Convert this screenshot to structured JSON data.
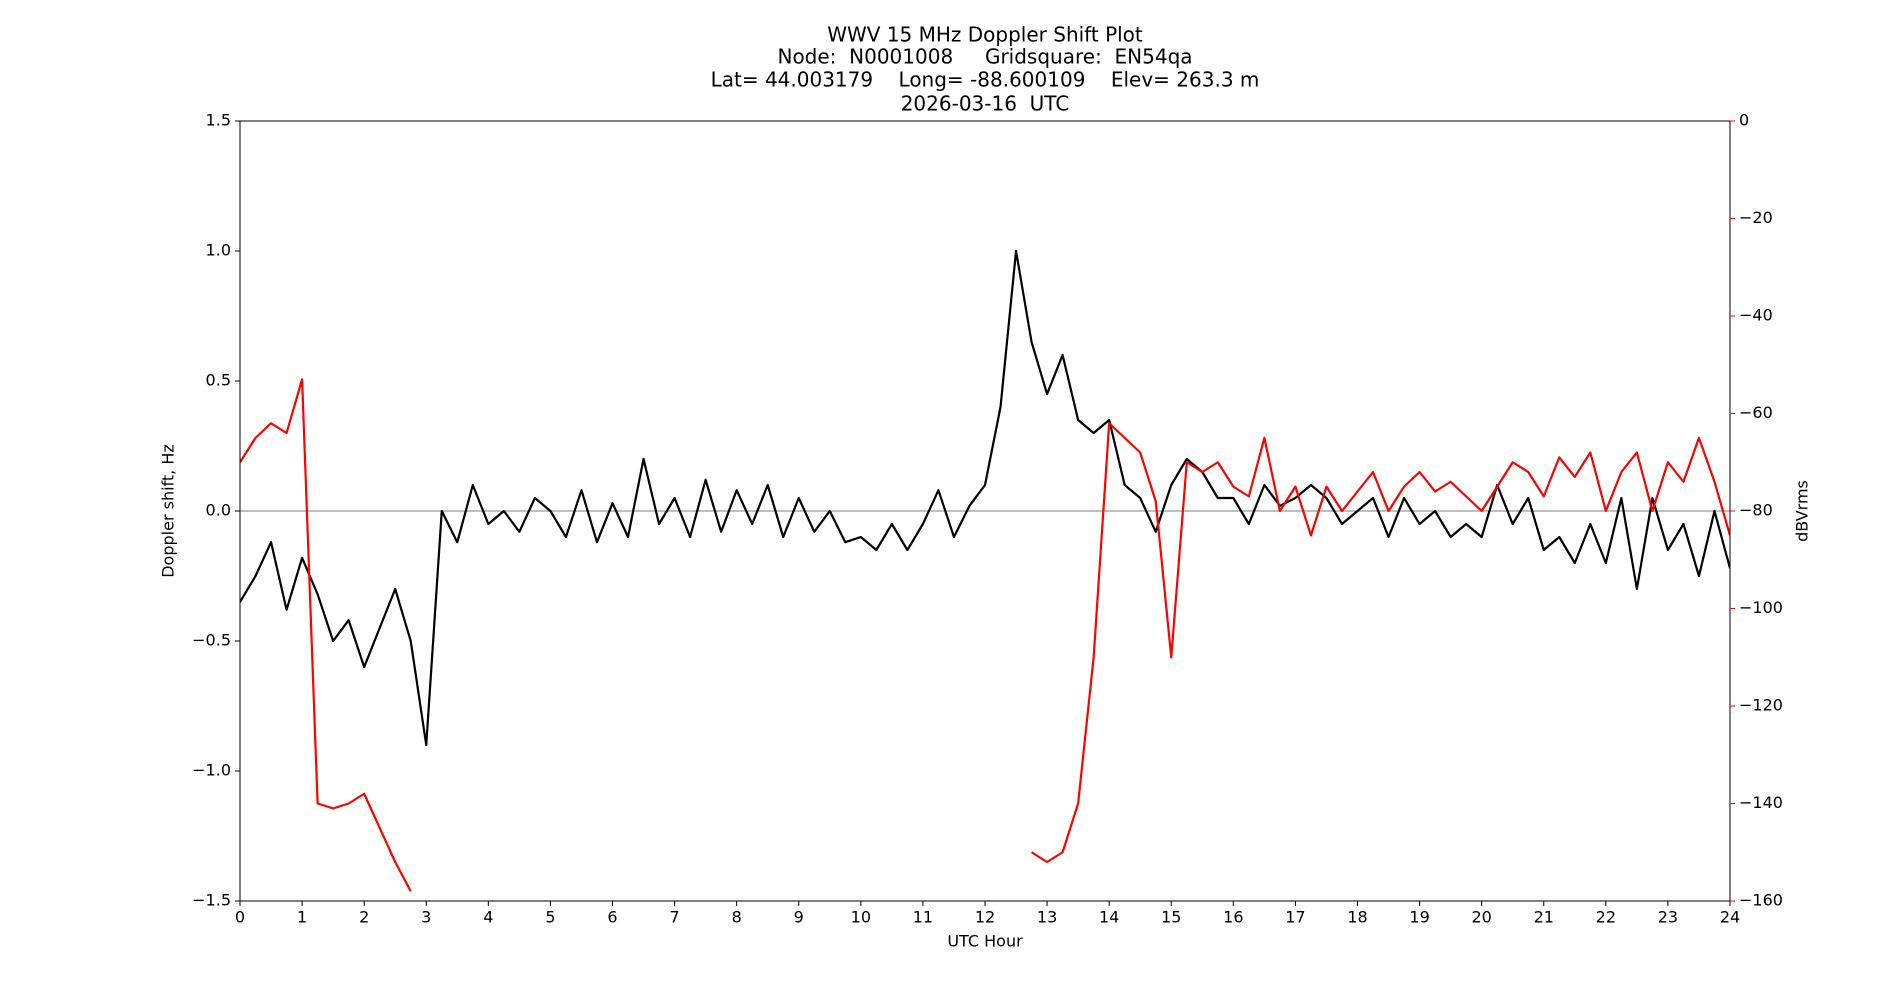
{
  "chart_data": {
    "type": "line",
    "title": "WWV 15 MHz Doppler Shift Plot",
    "subtitle": [
      "Node:  N0001008     Gridsquare:  EN54qa",
      "Lat= 44.003179    Long= -88.600109    Elev= 263.3 m",
      "2026-03-16  UTC"
    ],
    "x_label": "UTC Hour",
    "y_label": "Doppler shift, Hz",
    "y2_label": "dBVrms",
    "y2_color": "#ff0000",
    "hline": 0,
    "x": [
      0,
      0.25,
      0.5,
      0.75,
      1,
      1.25,
      1.5,
      1.75,
      2,
      2.25,
      2.5,
      2.75,
      3,
      3.25,
      3.5,
      3.75,
      4,
      4.25,
      4.5,
      4.75,
      5,
      5.25,
      5.5,
      5.75,
      6,
      6.25,
      6.5,
      6.75,
      7,
      7.25,
      7.5,
      7.75,
      8,
      8.25,
      8.5,
      8.75,
      9,
      9.25,
      9.5,
      9.75,
      10,
      10.25,
      10.5,
      10.75,
      11,
      11.25,
      11.5,
      11.75,
      12,
      12.25,
      12.5,
      12.75,
      13,
      13.25,
      13.5,
      13.75,
      14,
      14.25,
      14.5,
      14.75,
      15,
      15.25,
      15.5,
      15.75,
      16,
      16.25,
      16.5,
      16.75,
      17,
      17.25,
      17.5,
      17.75,
      18,
      18.25,
      18.5,
      18.75,
      19,
      19.25,
      19.5,
      19.75,
      20,
      20.25,
      20.5,
      20.75,
      21,
      21.25,
      21.5,
      21.75,
      22,
      22.25,
      22.5,
      22.75,
      23,
      23.25,
      23.5,
      23.75,
      24
    ],
    "series": [
      {
        "name": "Doppler shift",
        "color": "#000000",
        "axis": "y",
        "values": [
          -0.35,
          -0.25,
          -0.12,
          -0.38,
          -0.18,
          -0.32,
          -0.5,
          -0.42,
          -0.6,
          -0.45,
          -0.3,
          -0.5,
          -0.9,
          0.0,
          -0.12,
          0.1,
          -0.05,
          0.0,
          -0.08,
          0.05,
          0.0,
          -0.1,
          0.08,
          -0.12,
          0.03,
          -0.1,
          0.2,
          -0.05,
          0.05,
          -0.1,
          0.12,
          -0.08,
          0.08,
          -0.05,
          0.1,
          -0.1,
          0.05,
          -0.08,
          0.0,
          -0.12,
          -0.1,
          -0.15,
          -0.05,
          -0.15,
          -0.05,
          0.08,
          -0.1,
          0.02,
          0.1,
          0.4,
          1.0,
          0.65,
          0.45,
          0.6,
          0.35,
          0.3,
          0.35,
          0.1,
          0.05,
          -0.08,
          0.1,
          0.2,
          0.15,
          0.05,
          0.05,
          -0.05,
          0.1,
          0.02,
          0.05,
          0.1,
          0.05,
          -0.05,
          0.0,
          0.05,
          -0.1,
          0.05,
          -0.05,
          0.0,
          -0.1,
          -0.05,
          -0.1,
          0.1,
          -0.05,
          0.05,
          -0.15,
          -0.1,
          -0.2,
          -0.05,
          -0.2,
          0.05,
          -0.3,
          0.05,
          -0.15,
          -0.05,
          -0.25,
          0.0,
          -0.22
        ]
      },
      {
        "name": "dBVrms",
        "color": "#ff0000",
        "axis": "y2",
        "values": [
          -70,
          -65,
          -62,
          -64,
          -53,
          -140,
          -141,
          -140,
          -138,
          -145,
          -152,
          -158,
          null,
          null,
          null,
          null,
          null,
          null,
          null,
          null,
          null,
          null,
          null,
          null,
          null,
          null,
          null,
          null,
          null,
          null,
          null,
          null,
          null,
          null,
          null,
          null,
          null,
          null,
          null,
          null,
          null,
          null,
          null,
          null,
          null,
          null,
          null,
          null,
          null,
          null,
          null,
          -150,
          -152,
          -150,
          -140,
          -110,
          -62,
          -65,
          -68,
          -78,
          -110,
          -70,
          -72,
          -70,
          -75,
          -77,
          -65,
          -80,
          -75,
          -85,
          -75,
          -80,
          -76,
          -72,
          -80,
          -75,
          -72,
          -76,
          -74,
          -77,
          -80,
          -75,
          -70,
          -72,
          -77,
          -69,
          -73,
          -68,
          -80,
          -72,
          -68,
          -80,
          -70,
          -74,
          -65,
          -74,
          -85
        ]
      }
    ],
    "xlim": [
      0,
      24
    ],
    "xticks": [
      0,
      1,
      2,
      3,
      4,
      5,
      6,
      7,
      8,
      9,
      10,
      11,
      12,
      13,
      14,
      15,
      16,
      17,
      18,
      19,
      20,
      21,
      22,
      23,
      24
    ],
    "ylim": [
      -1.5,
      1.5
    ],
    "yticks": [
      {
        "value": -1.5,
        "label": "−1.5"
      },
      {
        "value": -1,
        "label": "−1.0"
      },
      {
        "value": -0.5,
        "label": "−0.5"
      },
      {
        "value": 0,
        "label": "0.0"
      },
      {
        "value": 0.5,
        "label": "0.5"
      },
      {
        "value": 1,
        "label": "1.0"
      },
      {
        "value": 1.5,
        "label": "1.5"
      }
    ],
    "y2lim": [
      -160,
      0
    ],
    "y2ticks": [
      {
        "value": -160,
        "label": "−160"
      },
      {
        "value": -140,
        "label": "−140"
      },
      {
        "value": -120,
        "label": "−120"
      },
      {
        "value": -100,
        "label": "−100"
      },
      {
        "value": -80,
        "label": "−80"
      },
      {
        "value": -60,
        "label": "−60"
      },
      {
        "value": -40,
        "label": "−40"
      },
      {
        "value": -20,
        "label": "−20"
      },
      0
    ]
  }
}
